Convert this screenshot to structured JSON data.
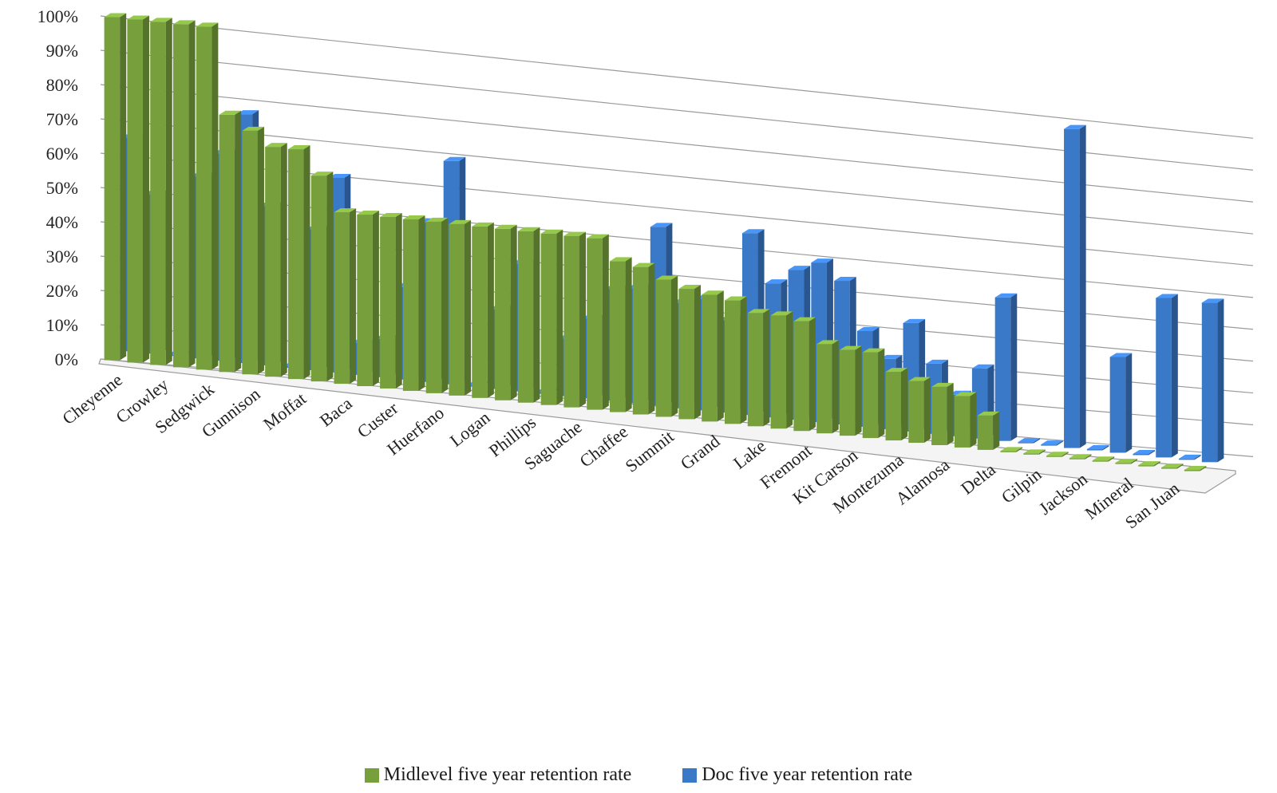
{
  "chart_data": {
    "type": "bar",
    "style": "3d-clustered-column",
    "categories": [
      "Cheyenne",
      "",
      "Crowley",
      "",
      "Sedgwick",
      "",
      "Gunnison",
      "",
      "Moffat",
      "",
      "Baca",
      "",
      "Custer",
      "",
      "Huerfano",
      "",
      "Logan",
      "",
      "Phillips",
      "",
      "Saguache",
      "",
      "Chaffee",
      "",
      "Summit",
      "",
      "Grand",
      "",
      "Lake",
      "",
      "Fremont",
      "",
      "Kit Carson",
      "",
      "Montezuma",
      "",
      "Alamosa",
      "",
      "Delta",
      "",
      "Gilpin",
      "",
      "Jackson",
      "",
      "Mineral",
      "",
      "San Juan",
      ""
    ],
    "series": [
      {
        "name": "Midlevel five year retention rate",
        "color": "#77a03c",
        "values": [
          100,
          100,
          100,
          100,
          100,
          75,
          71,
          67,
          67,
          60,
          50,
          50,
          50,
          50,
          50,
          50,
          50,
          50,
          50,
          50,
          50,
          50,
          44,
          43,
          40,
          38,
          37,
          36,
          33,
          33,
          32,
          26,
          25,
          25,
          20,
          18,
          17,
          15,
          10,
          0,
          0,
          0,
          0,
          0,
          0,
          0,
          0,
          0
        ]
      },
      {
        "name": "Doc five year retention rate",
        "color": "#3a78c8",
        "values": [
          67,
          50,
          0,
          57,
          65,
          78,
          50,
          0,
          44,
          61,
          10,
          12,
          29,
          50,
          70,
          0,
          25,
          40,
          0,
          18,
          25,
          35,
          36,
          56,
          33,
          35,
          29,
          57,
          42,
          47,
          50,
          45,
          30,
          22,
          34,
          22,
          13,
          22,
          45,
          0,
          0,
          100,
          0,
          30,
          0,
          50,
          0,
          50
        ]
      }
    ],
    "ylim": [
      0,
      100
    ],
    "y_ticks": [
      "0%",
      "10%",
      "20%",
      "30%",
      "40%",
      "50%",
      "60%",
      "70%",
      "80%",
      "90%",
      "100%"
    ],
    "grid": true,
    "legend_position": "bottom"
  }
}
